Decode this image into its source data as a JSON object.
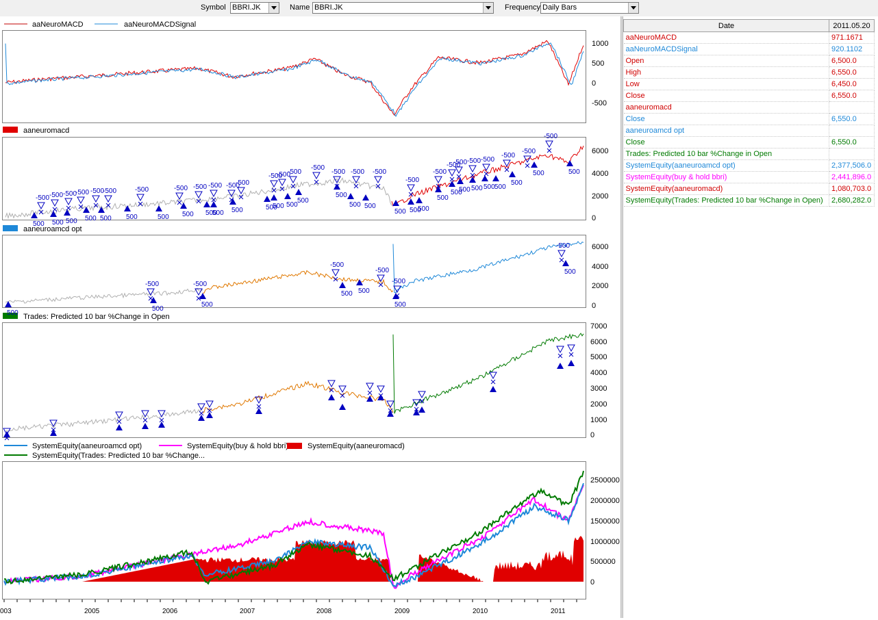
{
  "toolbar": {
    "symbol_label": "Symbol",
    "symbol_value": "BBRI.JK",
    "name_label": "Name",
    "name_value": "BBRI.JK",
    "frequency_label": "Frequency",
    "frequency_value": "Daily Bars"
  },
  "panes": {
    "macd": {
      "legend": [
        "aaNeuroMACD",
        "aaNeuroMACDSignal"
      ],
      "ticks": [
        "1000",
        "500",
        "0",
        "-500"
      ]
    },
    "aaneuromacd": {
      "legend": "aaneuromacd",
      "ticks": [
        "6000",
        "4000",
        "2000",
        "0"
      ],
      "trade_label_sell": "-500",
      "trade_label_buy": "500"
    },
    "opt": {
      "legend": "aaneuroamcd opt",
      "ticks": [
        "6000",
        "4000",
        "2000",
        "0"
      ]
    },
    "trades": {
      "legend": "Trades: Predicted 10 bar %Change in Open",
      "ticks": [
        "7000",
        "6000",
        "5000",
        "4000",
        "3000",
        "2000",
        "1000",
        "0"
      ]
    },
    "equity": {
      "legend": [
        "SystemEquity(aaneuroamcd opt)",
        "SystemEquity(buy & hold bbri)",
        "SystemEquity(aaneuromacd)",
        "SystemEquity(Trades: Predicted 10 bar %Change..."
      ],
      "ticks": [
        "2500000",
        "2000000",
        "1500000",
        "1000000",
        "500000",
        "0"
      ]
    },
    "xaxis": [
      "003",
      "2005",
      "2006",
      "2007",
      "2008",
      "2009",
      "2010",
      "2011"
    ]
  },
  "colors": {
    "red": "#e00000",
    "blue": "#1e88d8",
    "magenta": "#ff00ff",
    "green": "#007a00",
    "orange": "#e07800",
    "gray": "#b0b0b0",
    "navy": "#0000c0"
  },
  "data_table": {
    "header": [
      "Date",
      "2011.05.20"
    ],
    "rows": [
      {
        "label": "aaNeuroMACD",
        "value": "971.1671",
        "color": "#d00000"
      },
      {
        "label": "aaNeuroMACDSignal",
        "value": "920.1102",
        "color": "#1e88d8"
      },
      {
        "label": "Open",
        "value": "6,500.0",
        "color": "#d00000"
      },
      {
        "label": "High",
        "value": "6,550.0",
        "color": "#d00000"
      },
      {
        "label": "Low",
        "value": "6,450.0",
        "color": "#d00000"
      },
      {
        "label": "Close",
        "value": "6,550.0",
        "color": "#d00000"
      },
      {
        "label": "aaneuromacd",
        "value": "",
        "color": "#d00000"
      },
      {
        "label": "Close",
        "value": "6,550.0",
        "color": "#1e88d8"
      },
      {
        "label": "aaneuroamcd opt",
        "value": "",
        "color": "#1e88d8"
      },
      {
        "label": "Close",
        "value": "6,550.0",
        "color": "#007a00"
      },
      {
        "label": "Trades: Predicted 10 bar %Change in Open",
        "value": "",
        "color": "#007a00"
      },
      {
        "label": "SystemEquity(aaneuroamcd opt)",
        "value": "2,377,506.0",
        "color": "#1e88d8"
      },
      {
        "label": "SystemEquity(buy & hold bbri)",
        "value": "2,441,896.0",
        "color": "#ff00ff"
      },
      {
        "label": "SystemEquity(aaneuromacd)",
        "value": "1,080,703.0",
        "color": "#d00000"
      },
      {
        "label": "SystemEquity(Trades: Predicted 10 bar %Change in Open)",
        "value": "2,680,282.0",
        "color": "#007a00"
      }
    ]
  }
}
